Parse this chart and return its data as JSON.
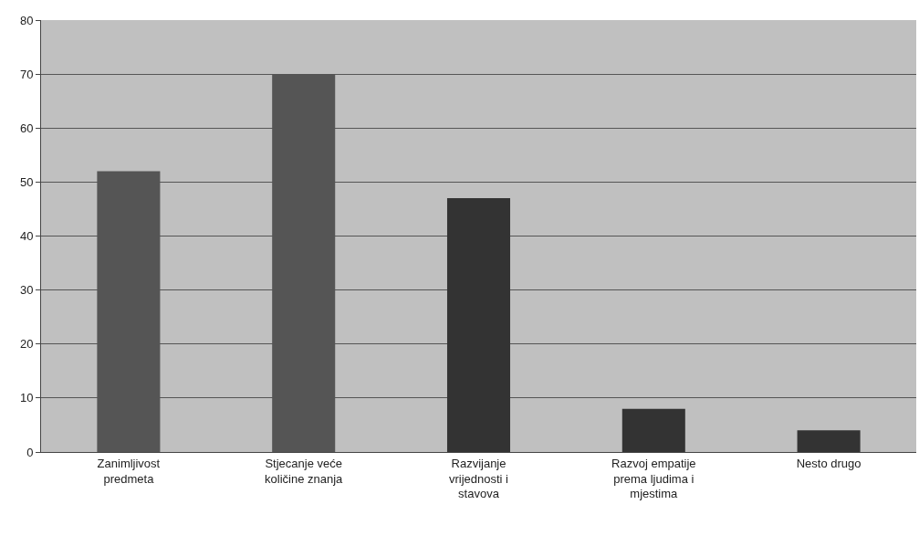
{
  "chart_data": {
    "type": "bar",
    "categories": [
      "Zanimljivost predmeta",
      "Stjecanje veće količine znanja",
      "Razvijanje vrijednosti i stavova",
      "Razvoj empatije prema ljudima i mjestima",
      "Nesto drugo"
    ],
    "values": [
      52,
      70,
      47,
      8,
      4
    ],
    "colors": [
      "#555555",
      "#555555",
      "#333333",
      "#333333",
      "#333333"
    ],
    "ylim": [
      0,
      80
    ],
    "yticks": [
      0,
      10,
      20,
      30,
      40,
      50,
      60,
      70,
      80
    ],
    "grid": "y"
  }
}
